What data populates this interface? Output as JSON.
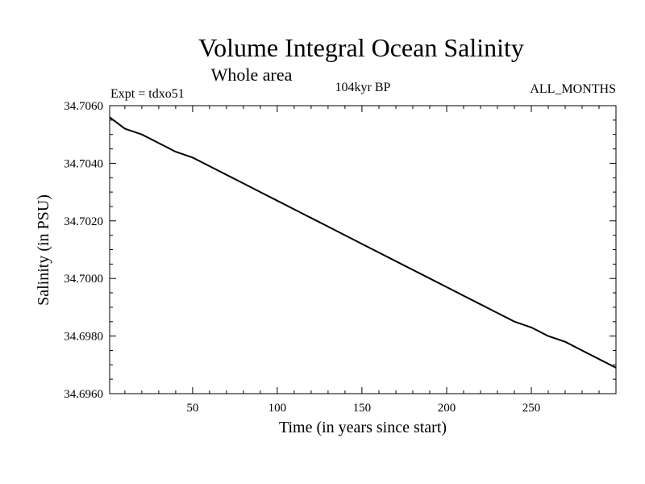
{
  "chart_data": {
    "type": "line",
    "title": "Volume Integral Ocean Salinity",
    "subtitle": "Whole area",
    "experiment_label": "Expt = tdxo51",
    "period_label": "104kyr BP",
    "months_label": "ALL_MONTHS",
    "xlabel": "Time (in years since start)",
    "ylabel": "Salinity (in PSU)",
    "xlim": [
      1,
      300
    ],
    "ylim": [
      34.696,
      34.706
    ],
    "x_ticks": [
      50,
      100,
      150,
      200,
      250
    ],
    "x_tick_labels": [
      "50",
      "100",
      "150",
      "200",
      "250"
    ],
    "y_ticks": [
      34.696,
      34.698,
      34.7,
      34.702,
      34.704,
      34.706
    ],
    "y_tick_labels": [
      "34.6960",
      "34.6980",
      "34.7000",
      "34.7020",
      "34.7040",
      "34.7060"
    ],
    "series": [
      {
        "name": "Salinity",
        "color": "#000000",
        "x": [
          1,
          10,
          20,
          30,
          40,
          50,
          60,
          70,
          80,
          90,
          100,
          110,
          120,
          130,
          140,
          150,
          160,
          170,
          180,
          190,
          200,
          210,
          220,
          230,
          240,
          250,
          260,
          270,
          280,
          290,
          300
        ],
        "y": [
          34.7056,
          34.7052,
          34.705,
          34.7047,
          34.7044,
          34.7042,
          34.7039,
          34.7036,
          34.7033,
          34.703,
          34.7027,
          34.7024,
          34.7021,
          34.7018,
          34.7015,
          34.7012,
          34.7009,
          34.7006,
          34.7003,
          34.7,
          34.6997,
          34.6994,
          34.6991,
          34.6988,
          34.6985,
          34.6983,
          34.698,
          34.6978,
          34.6975,
          34.6972,
          34.6969
        ]
      }
    ]
  }
}
